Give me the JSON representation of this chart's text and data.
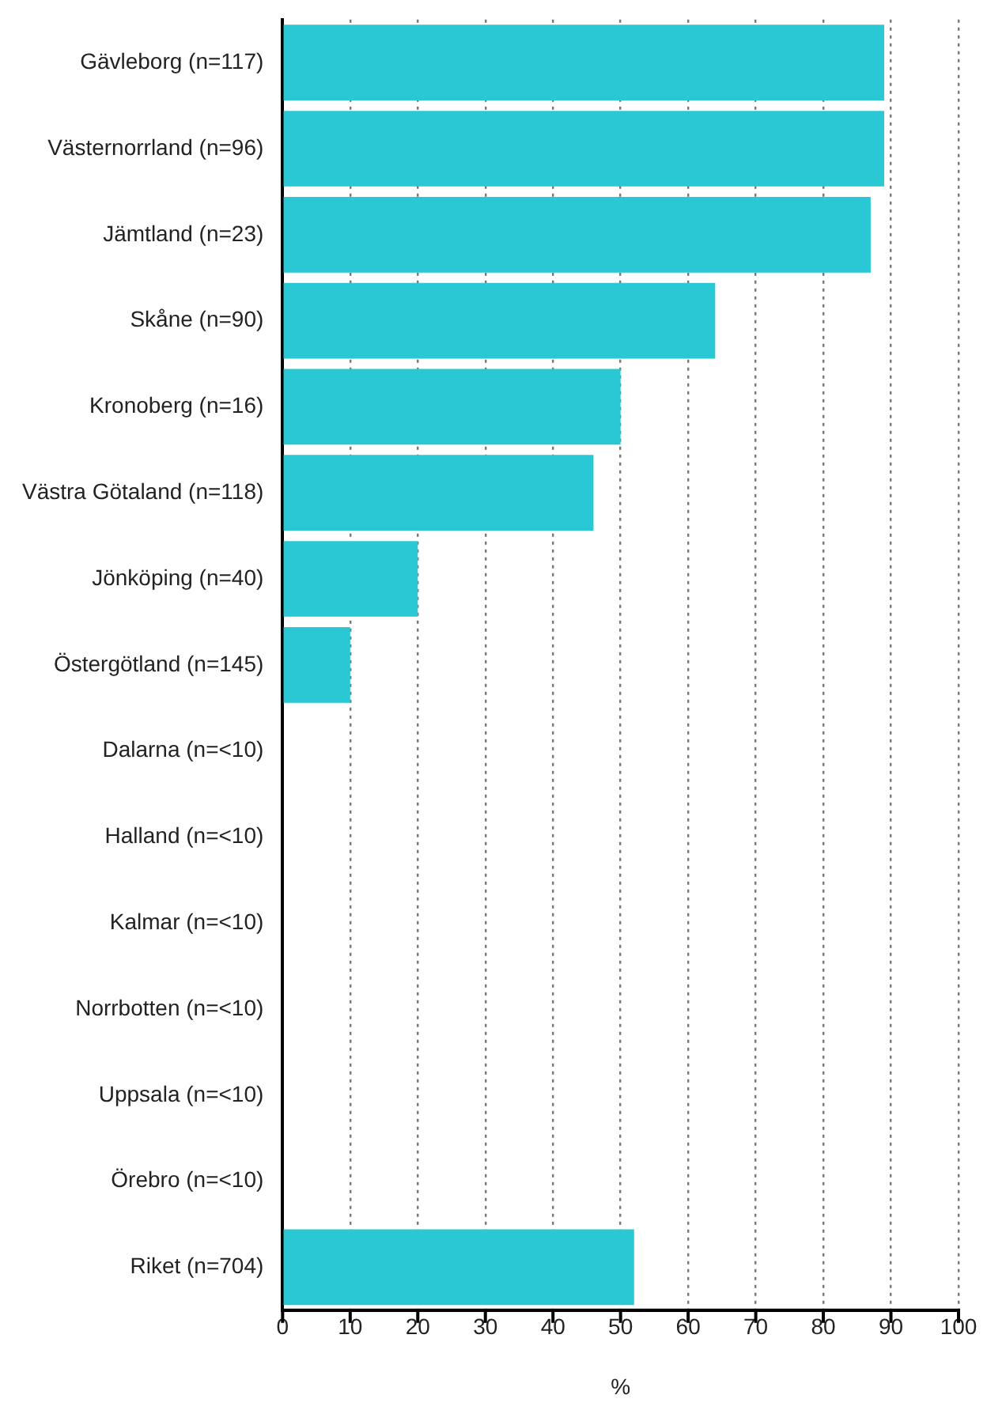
{
  "chart_data": {
    "type": "bar",
    "orientation": "horizontal",
    "xlabel": "%",
    "categories": [
      "Gävleborg (n=117)",
      "Västernorrland (n=96)",
      "Jämtland (n=23)",
      "Skåne (n=90)",
      "Kronoberg (n=16)",
      "Västra Götaland (n=118)",
      "Jönköping (n=40)",
      "Östergötland (n=145)",
      "Dalarna (n=<10)",
      "Halland (n=<10)",
      "Kalmar (n=<10)",
      "Norrbotten (n=<10)",
      "Uppsala (n=<10)",
      "Örebro (n=<10)",
      "Riket (n=704)"
    ],
    "values": [
      89,
      89,
      87,
      64,
      50,
      46,
      20,
      10,
      null,
      null,
      null,
      null,
      null,
      null,
      52
    ],
    "color": "#2ac8d4",
    "xlim": [
      0,
      100
    ],
    "xticks": [
      0,
      10,
      20,
      30,
      40,
      50,
      60,
      70,
      80,
      90,
      100
    ],
    "grid": "x",
    "legend": false
  }
}
